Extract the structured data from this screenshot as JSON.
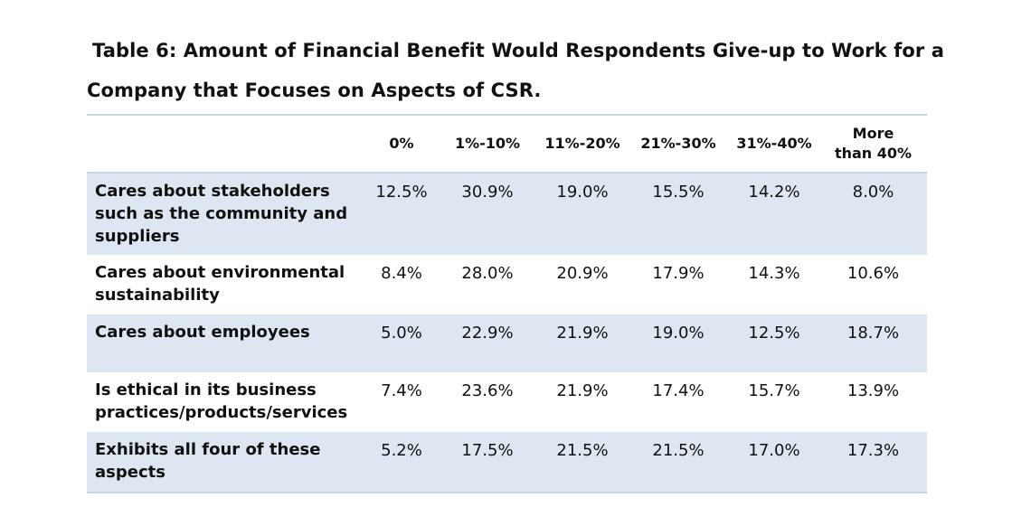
{
  "title": {
    "line1": "Table 6: Amount of Financial Benefit Would Respondents Give-up to Work for a",
    "line2": "Company that Focuses on Aspects of CSR."
  },
  "table": {
    "headers": {
      "label": "",
      "col1": "0%",
      "col2": "1%-10%",
      "col3": "11%-20%",
      "col4": "21%-30%",
      "col5": "31%-40%",
      "col6_line1": "More",
      "col6_line2": "than 40%"
    },
    "rows": [
      {
        "label": "Cares about stakeholders such as the community and suppliers",
        "values": [
          "12.5%",
          "30.9%",
          "19.0%",
          "15.5%",
          "14.2%",
          "8.0%"
        ]
      },
      {
        "label": "Cares about environmental sustainability",
        "values": [
          "8.4%",
          "28.0%",
          "20.9%",
          "17.9%",
          "14.3%",
          "10.6%"
        ]
      },
      {
        "label": "Cares about employees",
        "values": [
          "5.0%",
          "22.9%",
          "21.9%",
          "19.0%",
          "12.5%",
          "18.7%"
        ]
      },
      {
        "label": "Is ethical in its business practices/products/services",
        "values": [
          "7.4%",
          "23.6%",
          "21.9%",
          "17.4%",
          "15.7%",
          "13.9%"
        ]
      },
      {
        "label": "Exhibits all four of these aspects",
        "values": [
          "5.2%",
          "17.5%",
          "21.5%",
          "21.5%",
          "17.0%",
          "17.3%"
        ]
      }
    ]
  }
}
